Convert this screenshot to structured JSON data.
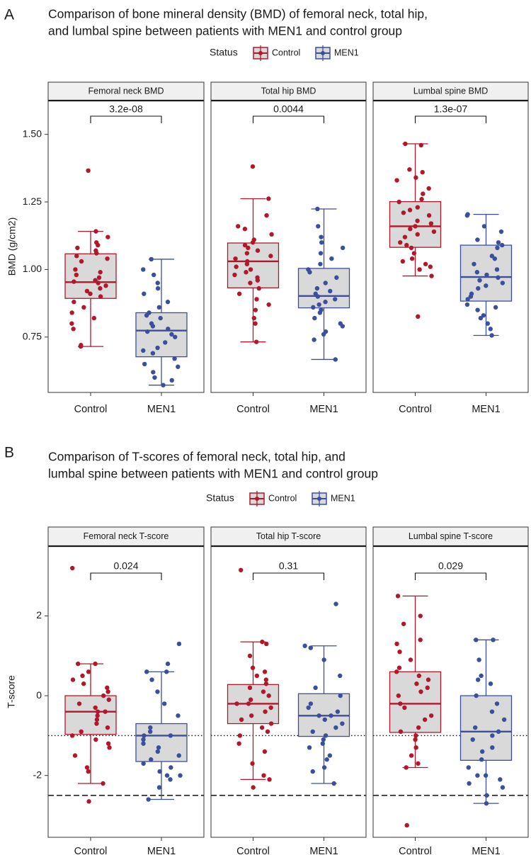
{
  "chart_data": [
    {
      "panel_letter": "A",
      "type": "boxplot",
      "title_lines": [
        "Comparison of bone mineral density (BMD) of femoral neck, total hip,",
        "and lumbal spine between patients with MEN1 and control group"
      ],
      "legend": {
        "title": "Status",
        "entries": [
          "Control",
          "MEN1"
        ],
        "position": "top"
      },
      "ylabel": "BMD (g/cm2)",
      "ylim": [
        0.545,
        1.625
      ],
      "yticks": [
        0.75,
        1.0,
        1.25,
        1.5
      ],
      "ytick_labels": [
        "0.75",
        "1.00",
        "1.25",
        "1.50"
      ],
      "categories": [
        "Control",
        "MEN1"
      ],
      "ref_lines": [],
      "facets": [
        {
          "title": "Femoral neck BMD",
          "pvalue": "3.2e-08",
          "groups": [
            {
              "name": "Control",
              "min": 0.715,
              "q1": 0.893,
              "median": 0.953,
              "q3": 1.058,
              "max": 1.141,
              "points": [
                1.366,
                1.141,
                1.12,
                1.1,
                1.09,
                1.08,
                1.07,
                1.06,
                1.05,
                1.04,
                1.03,
                1.0,
                0.99,
                0.98,
                0.97,
                0.96,
                0.955,
                0.95,
                0.94,
                0.93,
                0.92,
                0.91,
                0.9,
                0.88,
                0.86,
                0.84,
                0.82,
                0.8,
                0.78,
                0.72,
                0.715
              ]
            },
            {
              "name": "MEN1",
              "min": 0.572,
              "q1": 0.677,
              "median": 0.774,
              "q3": 0.84,
              "max": 1.038,
              "points": [
                1.038,
                1.0,
                0.98,
                0.95,
                0.93,
                0.91,
                0.88,
                0.86,
                0.84,
                0.83,
                0.82,
                0.8,
                0.79,
                0.78,
                0.77,
                0.76,
                0.75,
                0.73,
                0.71,
                0.7,
                0.69,
                0.67,
                0.65,
                0.64,
                0.62,
                0.6,
                0.59,
                0.572
              ]
            }
          ]
        },
        {
          "title": "Total hip BMD",
          "pvalue": "0.0044",
          "groups": [
            {
              "name": "Control",
              "min": 0.732,
              "q1": 0.932,
              "median": 1.03,
              "q3": 1.098,
              "max": 1.262,
              "points": [
                1.381,
                1.262,
                1.2,
                1.16,
                1.15,
                1.13,
                1.11,
                1.1,
                1.09,
                1.08,
                1.07,
                1.06,
                1.05,
                1.04,
                1.03,
                1.02,
                1.01,
                1.0,
                0.99,
                0.98,
                0.97,
                0.96,
                0.95,
                0.93,
                0.91,
                0.89,
                0.87,
                0.85,
                0.82,
                0.8,
                0.732
              ]
            },
            {
              "name": "MEN1",
              "min": 0.667,
              "q1": 0.858,
              "median": 0.902,
              "q3": 1.004,
              "max": 1.224,
              "points": [
                1.224,
                1.16,
                1.12,
                1.1,
                1.08,
                1.06,
                1.04,
                1.02,
                1.0,
                0.99,
                0.97,
                0.95,
                0.93,
                0.92,
                0.91,
                0.9,
                0.89,
                0.88,
                0.87,
                0.86,
                0.85,
                0.84,
                0.82,
                0.8,
                0.79,
                0.77,
                0.76,
                0.74,
                0.667
              ]
            }
          ]
        },
        {
          "title": "Lumbal spine BMD",
          "pvalue": "1.3e-07",
          "groups": [
            {
              "name": "Control",
              "min": 0.976,
              "q1": 1.082,
              "median": 1.16,
              "q3": 1.251,
              "max": 1.465,
              "points": [
                1.465,
                1.46,
                1.37,
                1.36,
                1.34,
                1.33,
                1.3,
                1.28,
                1.26,
                1.25,
                1.23,
                1.22,
                1.21,
                1.2,
                1.18,
                1.17,
                1.16,
                1.15,
                1.14,
                1.13,
                1.12,
                1.1,
                1.09,
                1.08,
                1.06,
                1.04,
                1.03,
                1.02,
                1.01,
                1.0,
                0.976,
                0.826
              ]
            },
            {
              "name": "MEN1",
              "min": 0.756,
              "q1": 0.883,
              "median": 0.972,
              "q3": 1.09,
              "max": 1.204,
              "points": [
                1.204,
                1.2,
                1.16,
                1.14,
                1.11,
                1.1,
                1.09,
                1.08,
                1.05,
                1.04,
                1.02,
                1.0,
                0.99,
                0.98,
                0.97,
                0.96,
                0.95,
                0.94,
                0.93,
                0.91,
                0.9,
                0.89,
                0.87,
                0.86,
                0.85,
                0.83,
                0.82,
                0.8,
                0.78,
                0.756
              ]
            }
          ]
        }
      ]
    },
    {
      "panel_letter": "B",
      "type": "boxplot",
      "title_lines": [
        "Comparison of T-scores of femoral neck, total hip, and",
        "lumbal spine between patients with MEN1 and control group"
      ],
      "legend": {
        "title": "Status",
        "entries": [
          "Control",
          "MEN1"
        ],
        "position": "top"
      },
      "ylabel": "T-score",
      "ylim": [
        -3.55,
        3.75
      ],
      "yticks": [
        -2,
        0,
        2
      ],
      "ytick_labels": [
        "-2",
        "0",
        "2"
      ],
      "categories": [
        "Control",
        "MEN1"
      ],
      "ref_lines": [
        {
          "value": -1,
          "style": "dotted"
        },
        {
          "value": -2.5,
          "style": "dashed"
        }
      ],
      "facets": [
        {
          "title": "Femoral neck T-score",
          "pvalue": "0.024",
          "groups": [
            {
              "name": "Control",
              "min": -2.2,
              "q1": -0.97,
              "median": -0.4,
              "q3": 0.0,
              "max": 0.8,
              "points": [
                3.2,
                0.8,
                0.8,
                0.6,
                0.5,
                0.4,
                0.3,
                0.2,
                0.1,
                0.0,
                -0.1,
                -0.2,
                -0.3,
                -0.4,
                -0.4,
                -0.5,
                -0.6,
                -0.7,
                -0.8,
                -0.9,
                -1.0,
                -1.1,
                -1.2,
                -1.3,
                -1.5,
                -1.8,
                -1.9,
                -2.2,
                -2.65
              ]
            },
            {
              "name": "MEN1",
              "min": -2.6,
              "q1": -1.65,
              "median": -1.0,
              "q3": -0.7,
              "max": 0.6,
              "points": [
                1.3,
                0.8,
                0.6,
                0.6,
                0.4,
                0.1,
                -0.2,
                -0.5,
                -0.8,
                -0.9,
                -1.0,
                -1.0,
                -1.1,
                -1.2,
                -1.3,
                -1.4,
                -1.5,
                -1.6,
                -1.7,
                -1.8,
                -1.9,
                -2.0,
                -2.0,
                -2.1,
                -2.3,
                -2.6
              ]
            }
          ]
        },
        {
          "title": "Total hip T-score",
          "pvalue": "0.31",
          "groups": [
            {
              "name": "Control",
              "min": -2.1,
              "q1": -0.7,
              "median": -0.2,
              "q3": 0.28,
              "max": 1.35,
              "points": [
                3.15,
                1.35,
                1.3,
                1.0,
                0.7,
                0.6,
                0.5,
                0.4,
                0.3,
                0.2,
                0.1,
                0.0,
                -0.1,
                -0.2,
                -0.2,
                -0.3,
                -0.4,
                -0.5,
                -0.6,
                -0.7,
                -0.8,
                -0.9,
                -1.0,
                -1.2,
                -1.4,
                -1.7,
                -2.0,
                -2.1,
                -2.3
              ]
            },
            {
              "name": "MEN1",
              "min": -2.2,
              "q1": -1.02,
              "median": -0.5,
              "q3": 0.05,
              "max": 1.25,
              "points": [
                2.3,
                1.25,
                1.2,
                0.9,
                0.5,
                0.2,
                0.0,
                -0.2,
                -0.3,
                -0.4,
                -0.5,
                -0.5,
                -0.6,
                -0.7,
                -0.8,
                -0.9,
                -1.0,
                -1.1,
                -1.2,
                -1.3,
                -1.5,
                -1.6,
                -1.8,
                -1.9,
                -2.2
              ]
            }
          ]
        },
        {
          "title": "Lumbal spine T-score",
          "pvalue": "0.029",
          "groups": [
            {
              "name": "Control",
              "min": -1.8,
              "q1": -0.92,
              "median": -0.2,
              "q3": 0.6,
              "max": 2.5,
              "points": [
                2.5,
                2.0,
                1.8,
                1.4,
                1.3,
                1.1,
                0.9,
                0.7,
                0.6,
                0.5,
                0.4,
                0.3,
                0.2,
                0.1,
                0.0,
                -0.2,
                -0.3,
                -0.5,
                -0.6,
                -0.8,
                -0.9,
                -1.0,
                -1.1,
                -1.3,
                -1.5,
                -1.7,
                -1.8,
                -3.25
              ]
            },
            {
              "name": "MEN1",
              "min": -2.7,
              "q1": -1.62,
              "median": -0.9,
              "q3": 0.0,
              "max": 1.4,
              "points": [
                1.4,
                1.4,
                0.9,
                0.5,
                0.4,
                0.3,
                0.0,
                -0.2,
                -0.4,
                -0.6,
                -0.8,
                -0.9,
                -1.0,
                -1.1,
                -1.3,
                -1.4,
                -1.6,
                -1.8,
                -2.0,
                -2.0,
                -2.1,
                -2.2,
                -2.3,
                -2.5,
                -2.7
              ]
            }
          ]
        }
      ]
    }
  ],
  "colors": {
    "control": "#B2182B",
    "men1": "#3B4F9C",
    "box_fill": "#D9D9D9",
    "strip_fill": "#F0F0F0",
    "frame": "#333333",
    "text": "#1A1A1A"
  }
}
